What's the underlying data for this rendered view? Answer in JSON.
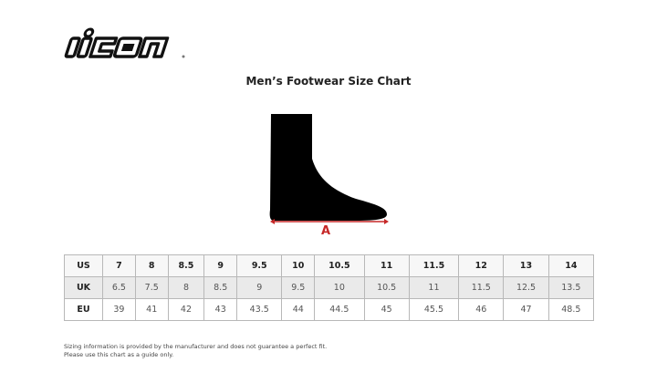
{
  "brand": {
    "logo_text": "icon"
  },
  "title": "Men’s Footwear Size Chart",
  "diagram": {
    "measure_label": "A",
    "accent_color": "#c62828"
  },
  "size_table": {
    "rows": [
      {
        "label": "US",
        "values": [
          "7",
          "8",
          "8.5",
          "9",
          "9.5",
          "10",
          "10.5",
          "11",
          "11.5",
          "12",
          "13",
          "14"
        ]
      },
      {
        "label": "UK",
        "values": [
          "6.5",
          "7.5",
          "8",
          "8.5",
          "9",
          "9.5",
          "10",
          "10.5",
          "11",
          "11.5",
          "12.5",
          "13.5"
        ]
      },
      {
        "label": "EU",
        "values": [
          "39",
          "41",
          "42",
          "43",
          "43.5",
          "44",
          "44.5",
          "45",
          "45.5",
          "46",
          "47",
          "48.5"
        ]
      }
    ]
  },
  "disclaimer": {
    "line1": "Sizing information is provided by the manufacturer and does not guarantee a perfect fit.",
    "line2": "Please use this chart as a guide only."
  }
}
